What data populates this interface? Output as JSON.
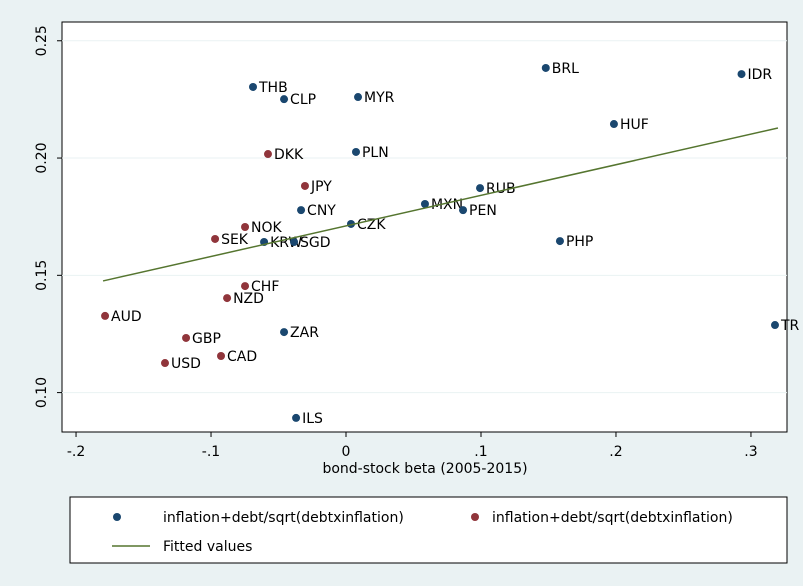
{
  "chart_data": {
    "type": "scatter",
    "xlabel": "bond-stock beta (2005-2015)",
    "xlim": [
      -0.2104,
      0.3267
    ],
    "ylim": [
      0.0832,
      0.258
    ],
    "xticks": [
      {
        "value": -0.2,
        "label": "-.2"
      },
      {
        "value": -0.1,
        "label": "-.1"
      },
      0,
      {
        "value": 0.1,
        "label": ".1"
      },
      {
        "value": 0.2,
        "label": ".2"
      },
      {
        "value": 0.3,
        "label": ".3"
      }
    ],
    "yticks": [
      {
        "value": 0.1,
        "label": "0.10"
      },
      0.15,
      {
        "value": 0.2,
        "label": "0.20"
      },
      0.25
    ],
    "grid": true,
    "series": [
      {
        "name": "inflation+debt/sqrt(debtxinflation)",
        "color": "#1a476f",
        "labels": [
          "THB",
          "CLP",
          "MYR",
          "BRL",
          "IDR",
          "HUF",
          "PLN",
          "RUB",
          "MXN",
          "PEN",
          "CNY",
          "CZK",
          "KRW",
          "SGD",
          "PHP",
          "ZAR",
          "ILS",
          "TR"
        ],
        "x": [
          -0.0689,
          -0.0459,
          0.0089,
          0.148,
          0.293,
          0.1985,
          0.0074,
          0.0993,
          0.0585,
          0.0867,
          -0.0333,
          0.0037,
          -0.0607,
          -0.0385,
          0.1585,
          -0.0459,
          -0.037,
          0.3178
        ],
        "values": [
          0.2303,
          0.2251,
          0.226,
          0.2384,
          0.2358,
          0.2145,
          0.2026,
          0.1872,
          0.1804,
          0.1778,
          0.1778,
          0.1719,
          0.1642,
          0.1642,
          0.1646,
          0.1258,
          0.0892,
          0.1288
        ]
      },
      {
        "name": "inflation+debt/sqrt(debtxinflation)",
        "color": "#90353b",
        "labels": [
          "DKK",
          "JPY",
          "NOK",
          "SEK",
          "CHF",
          "NZD",
          "AUD",
          "GBP",
          "CAD",
          "USD"
        ],
        "x": [
          -0.0578,
          -0.0304,
          -0.0748,
          -0.097,
          -0.0748,
          -0.0881,
          -0.1785,
          -0.1185,
          -0.0926,
          -0.1341
        ],
        "values": [
          0.2017,
          0.1881,
          0.1706,
          0.1655,
          0.1454,
          0.1403,
          0.1327,
          0.1233,
          0.1156,
          0.1126
        ]
      },
      {
        "name": "Fitted values",
        "type": "line",
        "color": "#55752f",
        "x": [
          -0.18,
          0.32
        ],
        "values": [
          0.1476,
          0.2128
        ]
      }
    ]
  }
}
